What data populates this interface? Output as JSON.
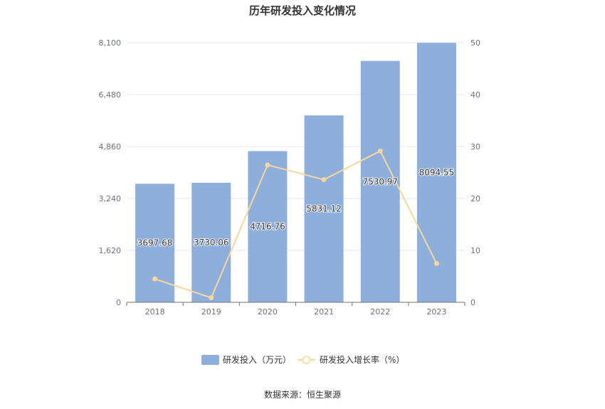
{
  "chart_data": {
    "type": "bar",
    "title": "历年研发投入变化情况",
    "categories": [
      "2018",
      "2019",
      "2020",
      "2021",
      "2022",
      "2023"
    ],
    "series": [
      {
        "name": "研发投入（万元）",
        "type": "bar",
        "axis": "left",
        "values": [
          3697.68,
          3730.06,
          4716.76,
          5831.12,
          7530.97,
          8094.55
        ],
        "labels": [
          "3697.68",
          "3730.06",
          "4716.76",
          "5831.12",
          "7530.97",
          "8094.55"
        ],
        "color": "#8eaedb"
      },
      {
        "name": "研发投入增长率（%）",
        "type": "line",
        "axis": "right",
        "values": [
          4.5,
          0.88,
          26.45,
          23.62,
          29.15,
          7.48
        ],
        "color": "#f9d69a"
      }
    ],
    "y_left": {
      "min": 0,
      "max": 8100,
      "ticks": [
        "0",
        "1,620",
        "3,240",
        "4,860",
        "6,480",
        "8,100"
      ]
    },
    "y_right": {
      "min": 0,
      "max": 50,
      "ticks": [
        "0",
        "10",
        "20",
        "30",
        "40",
        "50"
      ]
    },
    "grid": true,
    "legend": "bottom-center"
  },
  "source": "数据来源：恒生聚源"
}
